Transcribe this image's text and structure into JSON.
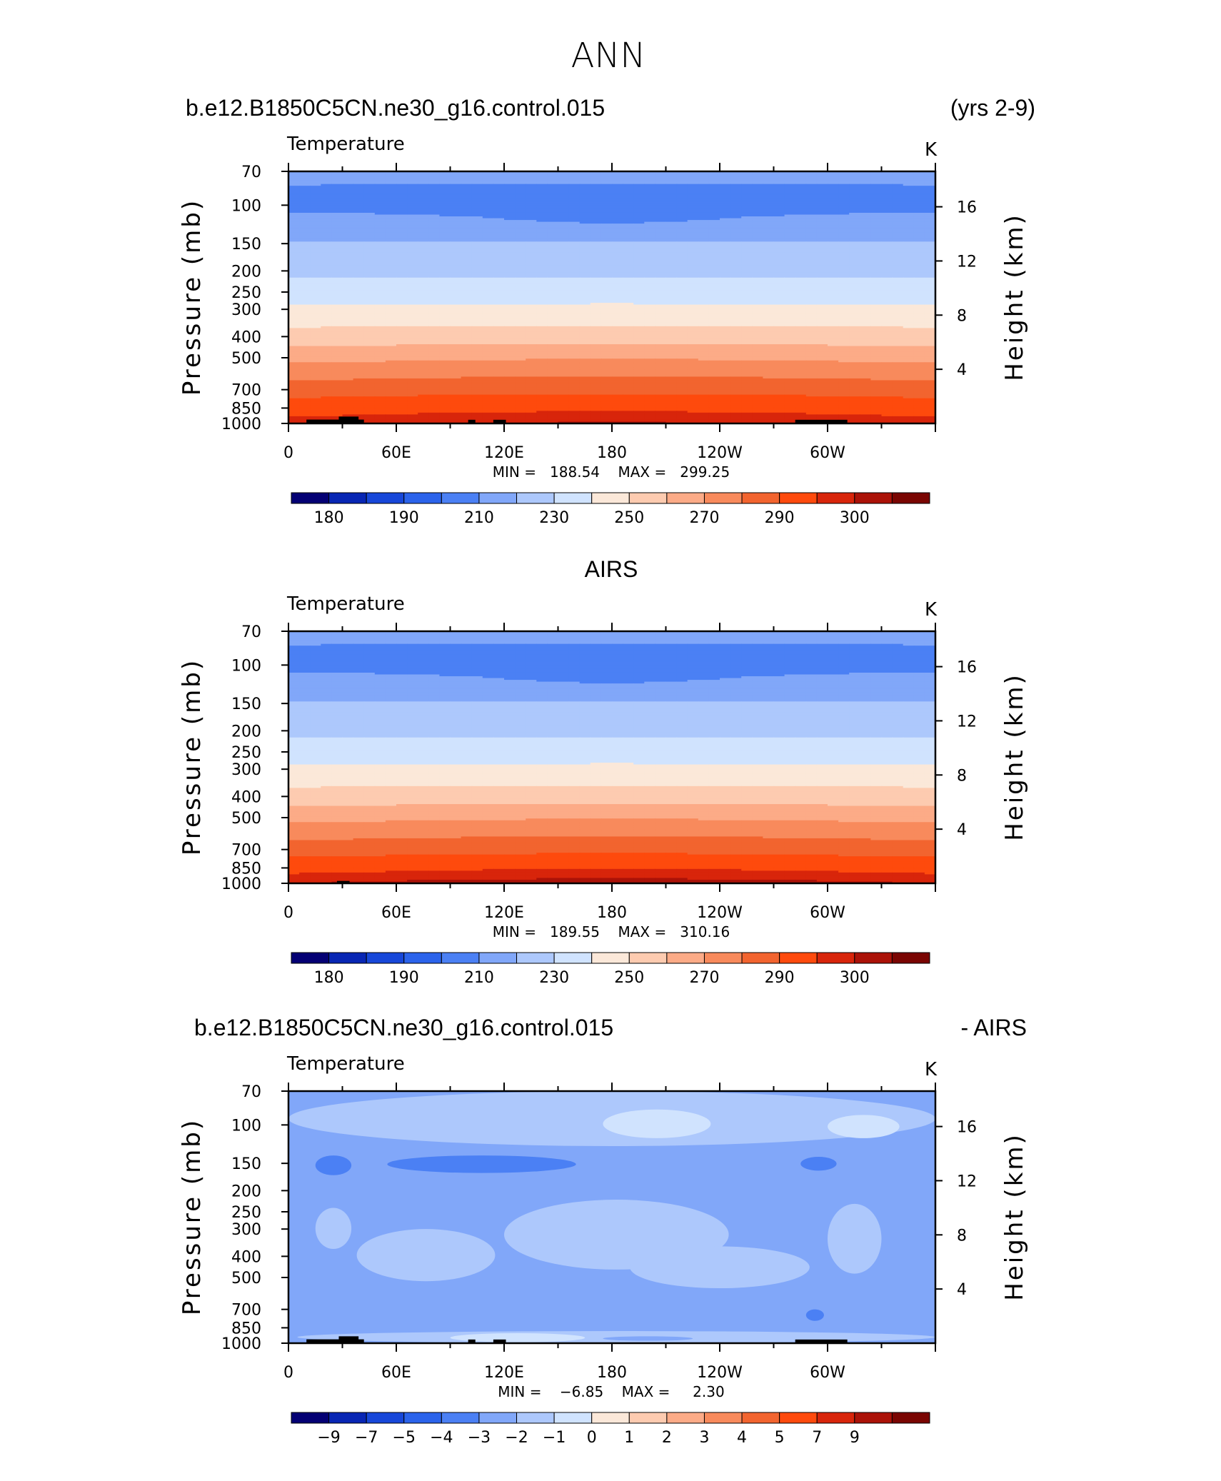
{
  "header": {
    "season": "ANN",
    "model_case": "b.e12.B1850C5CN.ne30_g16.control.015",
    "years": "(yrs 2-9)",
    "obs_title": "AIRS",
    "diff_case": "b.e12.B1850C5CN.ne30_g16.control.015",
    "diff_suffix": "- AIRS"
  },
  "axes": {
    "variable": "Temperature",
    "units": "K",
    "y_left_label": "Pressure (mb)",
    "y_right_label": "Height (km)",
    "pressure_ticks": [
      70,
      100,
      150,
      200,
      250,
      300,
      400,
      500,
      700,
      850,
      1000
    ],
    "height_ticks": [
      16,
      12,
      8,
      4
    ],
    "x_ticks": [
      "0",
      "60E",
      "120E",
      "180",
      "120W",
      "60W"
    ]
  },
  "colors": {
    "abs_palette": [
      "#040074",
      "#0826b4",
      "#1747d9",
      "#2b63eb",
      "#4b80f4",
      "#81a7f9",
      "#adc8fc",
      "#d0e3fe",
      "#fbe8d9",
      "#fdcbb0",
      "#fcab87",
      "#f88a5c",
      "#f2642f",
      "#fe4a0d",
      "#d8250b",
      "#ab1208",
      "#7a0502"
    ],
    "diff_palette": [
      "#040074",
      "#0826b4",
      "#1747d9",
      "#2b63eb",
      "#4b80f4",
      "#81a7f9",
      "#adc8fc",
      "#d0e3fe",
      "#fbe8d9",
      "#fdcbb0",
      "#fcab87",
      "#f88a5c",
      "#f2642f",
      "#fe4a0d",
      "#d8250b",
      "#ab1208",
      "#7a0502"
    ]
  },
  "chart_data": [
    {
      "type": "heatmap",
      "name": "model",
      "title": "b.e12.B1850C5CN.ne30_g16.control.015",
      "subtitle": "Temperature",
      "units": "K",
      "xlabel": "",
      "ylabel": "Pressure (mb)",
      "y2label": "Height (km)",
      "x_range": [
        0,
        360
      ],
      "y_range_mb": [
        70,
        1000
      ],
      "min": 188.54,
      "max": 299.25,
      "stats_text": "MIN =   188.54    MAX =   299.25",
      "contour_levels": [
        175,
        180,
        185,
        190,
        200,
        210,
        220,
        230,
        240,
        250,
        260,
        270,
        280,
        290,
        295,
        300
      ],
      "colorbar_labels": [
        "180",
        "190",
        "210",
        "230",
        "250",
        "270",
        "290",
        "300"
      ],
      "profile_pressure_mb": [
        70,
        100,
        150,
        200,
        250,
        300,
        400,
        500,
        700,
        850,
        1000
      ],
      "profile_temperature_k": [
        202,
        197,
        211,
        218,
        225,
        232,
        244,
        257,
        275,
        286,
        293
      ]
    },
    {
      "type": "heatmap",
      "name": "obs",
      "title": "AIRS",
      "subtitle": "Temperature",
      "units": "K",
      "xlabel": "",
      "ylabel": "Pressure (mb)",
      "y2label": "Height (km)",
      "x_range": [
        0,
        360
      ],
      "y_range_mb": [
        70,
        1000
      ],
      "min": 189.55,
      "max": 310.16,
      "stats_text": "MIN =   189.55    MAX =   310.16",
      "contour_levels": [
        175,
        180,
        185,
        190,
        200,
        210,
        220,
        230,
        240,
        250,
        260,
        270,
        280,
        290,
        295,
        300
      ],
      "colorbar_labels": [
        "180",
        "190",
        "210",
        "230",
        "250",
        "270",
        "290",
        "300"
      ],
      "profile_pressure_mb": [
        70,
        100,
        150,
        200,
        250,
        300,
        400,
        500,
        700,
        850,
        1000
      ],
      "profile_temperature_k": [
        202,
        197,
        211,
        218,
        225,
        232,
        244,
        257,
        275,
        287,
        295
      ]
    },
    {
      "type": "heatmap",
      "name": "difference",
      "title": "b.e12.B1850C5CN.ne30_g16.control.015 - AIRS",
      "subtitle": "Temperature",
      "units": "K",
      "xlabel": "",
      "ylabel": "Pressure (mb)",
      "y2label": "Height (km)",
      "x_range": [
        0,
        360
      ],
      "y_range_mb": [
        70,
        1000
      ],
      "min": -6.85,
      "max": 2.3,
      "stats_text": "MIN =    −6.85    MAX =     2.30",
      "contour_levels": [
        -10,
        -9,
        -7,
        -5,
        -4,
        -3,
        -2,
        -1,
        0,
        1,
        2,
        3,
        4,
        5,
        7,
        9
      ],
      "colorbar_labels": [
        "−9",
        "−7",
        "−5",
        "−4",
        "−3",
        "−2",
        "−1",
        "0",
        "1",
        "2",
        "3",
        "4",
        "5",
        "7",
        "9"
      ]
    }
  ]
}
